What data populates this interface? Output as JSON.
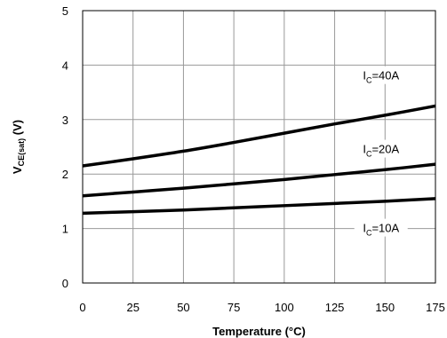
{
  "chart_data": {
    "type": "line",
    "xlabel": "Temperature (°C)",
    "ylabel": {
      "main": "V",
      "sub": "CE(sat)",
      "unit": " (V)"
    },
    "xlim": [
      0,
      175
    ],
    "ylim": [
      0,
      5
    ],
    "xticks": [
      "0",
      "25",
      "50",
      "75",
      "100",
      "125",
      "150",
      "175"
    ],
    "yticks": [
      "0",
      "1",
      "2",
      "3",
      "4",
      "5"
    ],
    "grid": true,
    "legend": "inline-labels",
    "line_color": "#000000",
    "grid_color": "#999999",
    "series": [
      {
        "name": "IC=40A",
        "label": {
          "main": "I",
          "sub": "C",
          "rest": "=40A"
        },
        "x": [
          0,
          25,
          50,
          75,
          100,
          125,
          150,
          175
        ],
        "values": [
          2.15,
          2.28,
          2.42,
          2.58,
          2.75,
          2.92,
          3.08,
          3.25
        ]
      },
      {
        "name": "IC=20A",
        "label": {
          "main": "I",
          "sub": "C",
          "rest": "=20A"
        },
        "x": [
          0,
          25,
          50,
          75,
          100,
          125,
          150,
          175
        ],
        "values": [
          1.6,
          1.67,
          1.74,
          1.82,
          1.9,
          1.99,
          2.08,
          2.18
        ]
      },
      {
        "name": "IC=10A",
        "label": {
          "main": "I",
          "sub": "C",
          "rest": "=10A"
        },
        "x": [
          0,
          25,
          50,
          75,
          100,
          125,
          150,
          175
        ],
        "values": [
          1.28,
          1.31,
          1.34,
          1.38,
          1.42,
          1.46,
          1.5,
          1.55
        ]
      }
    ]
  }
}
